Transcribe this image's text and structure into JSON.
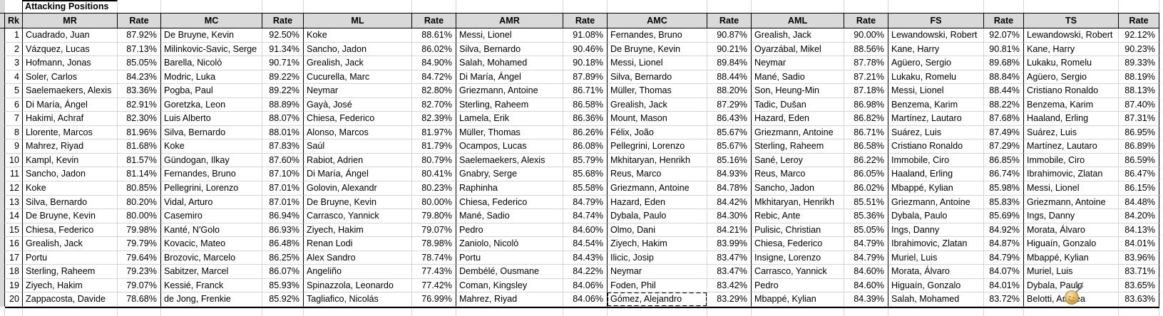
{
  "title": "Attacking Positions",
  "rank_header": "Rk",
  "rate_header": "Rate",
  "ranks": [
    1,
    2,
    3,
    4,
    5,
    6,
    7,
    8,
    9,
    10,
    11,
    12,
    13,
    14,
    15,
    16,
    17,
    18,
    19,
    20
  ],
  "groups": [
    {
      "position": "MR",
      "players": [
        {
          "name": "Cuadrado, Juan",
          "rate": "87.92%"
        },
        {
          "name": "Vázquez, Lucas",
          "rate": "87.13%"
        },
        {
          "name": "Hofmann, Jonas",
          "rate": "85.05%"
        },
        {
          "name": "Soler, Carlos",
          "rate": "84.23%"
        },
        {
          "name": "Saelemaekers, Alexis",
          "rate": "83.36%"
        },
        {
          "name": "Di María, Ángel",
          "rate": "82.91%"
        },
        {
          "name": "Hakimi, Achraf",
          "rate": "82.30%"
        },
        {
          "name": "Llorente, Marcos",
          "rate": "81.96%"
        },
        {
          "name": "Mahrez, Riyad",
          "rate": "81.68%"
        },
        {
          "name": "Kampl, Kevin",
          "rate": "81.57%"
        },
        {
          "name": "Sancho, Jadon",
          "rate": "81.14%"
        },
        {
          "name": "Koke",
          "rate": "80.85%"
        },
        {
          "name": "Silva, Bernardo",
          "rate": "80.20%"
        },
        {
          "name": "De Bruyne, Kevin",
          "rate": "80.00%"
        },
        {
          "name": "Chiesa, Federico",
          "rate": "79.98%"
        },
        {
          "name": "Grealish, Jack",
          "rate": "79.79%"
        },
        {
          "name": "Portu",
          "rate": "79.64%"
        },
        {
          "name": "Sterling, Raheem",
          "rate": "79.23%"
        },
        {
          "name": "Ziyech, Hakim",
          "rate": "79.07%"
        },
        {
          "name": "Zappacosta, Davide",
          "rate": "78.68%"
        }
      ]
    },
    {
      "position": "MC",
      "players": [
        {
          "name": "De Bruyne, Kevin",
          "rate": "92.50%"
        },
        {
          "name": "Milinkovic-Savic, Serge",
          "rate": "91.34%"
        },
        {
          "name": "Barella, Nicolò",
          "rate": "90.71%"
        },
        {
          "name": "Modric, Luka",
          "rate": "89.22%"
        },
        {
          "name": "Pogba, Paul",
          "rate": "89.22%"
        },
        {
          "name": "Goretzka, Leon",
          "rate": "88.89%"
        },
        {
          "name": "Luis Alberto",
          "rate": "88.07%"
        },
        {
          "name": "Silva, Bernardo",
          "rate": "88.01%"
        },
        {
          "name": "Koke",
          "rate": "87.83%"
        },
        {
          "name": "Gündogan, Ilkay",
          "rate": "87.60%"
        },
        {
          "name": "Fernandes, Bruno",
          "rate": "87.10%"
        },
        {
          "name": "Pellegrini, Lorenzo",
          "rate": "87.01%"
        },
        {
          "name": "Vidal, Arturo",
          "rate": "87.01%"
        },
        {
          "name": "Casemiro",
          "rate": "86.94%"
        },
        {
          "name": "Kanté, N'Golo",
          "rate": "86.93%"
        },
        {
          "name": "Kovacic, Mateo",
          "rate": "86.48%"
        },
        {
          "name": "Brozovic, Marcelo",
          "rate": "86.25%"
        },
        {
          "name": "Sabitzer, Marcel",
          "rate": "86.07%"
        },
        {
          "name": "Kessié, Franck",
          "rate": "85.93%"
        },
        {
          "name": "de Jong, Frenkie",
          "rate": "85.92%"
        }
      ]
    },
    {
      "position": "ML",
      "players": [
        {
          "name": "Koke",
          "rate": "88.61%"
        },
        {
          "name": "Sancho, Jadon",
          "rate": "86.02%"
        },
        {
          "name": "Grealish, Jack",
          "rate": "84.90%"
        },
        {
          "name": "Cucurella, Marc",
          "rate": "84.72%"
        },
        {
          "name": "Neymar",
          "rate": "82.80%"
        },
        {
          "name": "Gayà, José",
          "rate": "82.70%"
        },
        {
          "name": "Chiesa, Federico",
          "rate": "82.39%"
        },
        {
          "name": "Alonso, Marcos",
          "rate": "81.97%"
        },
        {
          "name": "Saúl",
          "rate": "81.79%"
        },
        {
          "name": "Rabiot, Adrien",
          "rate": "80.79%"
        },
        {
          "name": "Di María, Ángel",
          "rate": "80.41%"
        },
        {
          "name": "Golovin, Alexandr",
          "rate": "80.23%"
        },
        {
          "name": "De Bruyne, Kevin",
          "rate": "80.00%"
        },
        {
          "name": "Carrasco, Yannick",
          "rate": "79.80%"
        },
        {
          "name": "Ziyech, Hakim",
          "rate": "79.07%"
        },
        {
          "name": "Renan Lodi",
          "rate": "78.98%"
        },
        {
          "name": "Alex Sandro",
          "rate": "78.74%"
        },
        {
          "name": "Angeliño",
          "rate": "77.43%"
        },
        {
          "name": "Spinazzola, Leonardo",
          "rate": "77.42%"
        },
        {
          "name": "Tagliafico, Nicolás",
          "rate": "76.99%"
        }
      ]
    },
    {
      "position": "AMR",
      "players": [
        {
          "name": "Messi, Lionel",
          "rate": "91.08%"
        },
        {
          "name": "Silva, Bernardo",
          "rate": "90.46%"
        },
        {
          "name": "Salah, Mohamed",
          "rate": "90.18%"
        },
        {
          "name": "Di María, Ángel",
          "rate": "87.89%"
        },
        {
          "name": "Griezmann, Antoine",
          "rate": "86.71%"
        },
        {
          "name": "Sterling, Raheem",
          "rate": "86.58%"
        },
        {
          "name": "Lamela, Erik",
          "rate": "86.36%"
        },
        {
          "name": "Müller, Thomas",
          "rate": "86.26%"
        },
        {
          "name": "Ocampos, Lucas",
          "rate": "86.08%"
        },
        {
          "name": "Saelemaekers, Alexis",
          "rate": "85.79%"
        },
        {
          "name": "Gnabry, Serge",
          "rate": "85.68%"
        },
        {
          "name": "Raphinha",
          "rate": "85.58%"
        },
        {
          "name": "Chiesa, Federico",
          "rate": "84.79%"
        },
        {
          "name": "Mané, Sadio",
          "rate": "84.74%"
        },
        {
          "name": "Pedro",
          "rate": "84.60%"
        },
        {
          "name": "Zaniolo, Nicolò",
          "rate": "84.54%"
        },
        {
          "name": "Portu",
          "rate": "84.43%"
        },
        {
          "name": "Dembélé, Ousmane",
          "rate": "84.22%"
        },
        {
          "name": "Coman, Kingsley",
          "rate": "84.06%"
        },
        {
          "name": "Mahrez, Riyad",
          "rate": "84.06%"
        }
      ]
    },
    {
      "position": "AMC",
      "players": [
        {
          "name": "Fernandes, Bruno",
          "rate": "90.87%"
        },
        {
          "name": "De Bruyne, Kevin",
          "rate": "90.21%"
        },
        {
          "name": "Messi, Lionel",
          "rate": "89.84%"
        },
        {
          "name": "Silva, Bernardo",
          "rate": "88.44%"
        },
        {
          "name": "Müller, Thomas",
          "rate": "88.20%"
        },
        {
          "name": "Grealish, Jack",
          "rate": "87.29%"
        },
        {
          "name": "Mount, Mason",
          "rate": "86.43%"
        },
        {
          "name": "Félix, João",
          "rate": "85.67%"
        },
        {
          "name": "Pellegrini, Lorenzo",
          "rate": "85.67%"
        },
        {
          "name": "Mkhitaryan, Henrikh",
          "rate": "85.16%"
        },
        {
          "name": "Reus, Marco",
          "rate": "84.93%"
        },
        {
          "name": "Griezmann, Antoine",
          "rate": "84.78%"
        },
        {
          "name": "Hazard, Eden",
          "rate": "84.42%"
        },
        {
          "name": "Dybala, Paulo",
          "rate": "84.30%"
        },
        {
          "name": "Olmo, Dani",
          "rate": "84.21%"
        },
        {
          "name": "Ziyech, Hakim",
          "rate": "83.99%"
        },
        {
          "name": "Ilicic, Josip",
          "rate": "83.47%"
        },
        {
          "name": "Neymar",
          "rate": "83.47%"
        },
        {
          "name": "Foden, Phil",
          "rate": "83.42%"
        },
        {
          "name": "Gómez, Alejandro",
          "rate": "83.29%"
        }
      ]
    },
    {
      "position": "AML",
      "players": [
        {
          "name": "Grealish, Jack",
          "rate": "90.00%"
        },
        {
          "name": "Oyarzábal, Mikel",
          "rate": "88.56%"
        },
        {
          "name": "Neymar",
          "rate": "87.78%"
        },
        {
          "name": "Mané, Sadio",
          "rate": "87.21%"
        },
        {
          "name": "Son, Heung-Min",
          "rate": "87.18%"
        },
        {
          "name": "Tadic, Dušan",
          "rate": "86.98%"
        },
        {
          "name": "Hazard, Eden",
          "rate": "86.82%"
        },
        {
          "name": "Griezmann, Antoine",
          "rate": "86.71%"
        },
        {
          "name": "Sterling, Raheem",
          "rate": "86.58%"
        },
        {
          "name": "Sané, Leroy",
          "rate": "86.22%"
        },
        {
          "name": "Reus, Marco",
          "rate": "86.05%"
        },
        {
          "name": "Sancho, Jadon",
          "rate": "86.02%"
        },
        {
          "name": "Mkhitaryan, Henrikh",
          "rate": "85.51%"
        },
        {
          "name": "Rebic, Ante",
          "rate": "85.36%"
        },
        {
          "name": "Pulisic, Christian",
          "rate": "85.05%"
        },
        {
          "name": "Chiesa, Federico",
          "rate": "84.79%"
        },
        {
          "name": "Insigne, Lorenzo",
          "rate": "84.79%"
        },
        {
          "name": "Carrasco, Yannick",
          "rate": "84.60%"
        },
        {
          "name": "Pedro",
          "rate": "84.60%"
        },
        {
          "name": "Mbappé, Kylian",
          "rate": "84.39%"
        }
      ]
    },
    {
      "position": "FS",
      "players": [
        {
          "name": "Lewandowski, Robert",
          "rate": "92.07%"
        },
        {
          "name": "Kane, Harry",
          "rate": "90.81%"
        },
        {
          "name": "Agüero, Sergio",
          "rate": "89.68%"
        },
        {
          "name": "Lukaku, Romelu",
          "rate": "88.84%"
        },
        {
          "name": "Messi, Lionel",
          "rate": "88.44%"
        },
        {
          "name": "Benzema, Karim",
          "rate": "88.22%"
        },
        {
          "name": "Martínez, Lautaro",
          "rate": "87.68%"
        },
        {
          "name": "Suárez, Luis",
          "rate": "87.49%"
        },
        {
          "name": "Cristiano Ronaldo",
          "rate": "87.29%"
        },
        {
          "name": "Immobile, Ciro",
          "rate": "86.85%"
        },
        {
          "name": "Haaland, Erling",
          "rate": "86.74%"
        },
        {
          "name": "Mbappé, Kylian",
          "rate": "85.98%"
        },
        {
          "name": "Griezmann, Antoine",
          "rate": "85.83%"
        },
        {
          "name": "Dybala, Paulo",
          "rate": "85.69%"
        },
        {
          "name": "Ings, Danny",
          "rate": "84.92%"
        },
        {
          "name": "Ibrahimovic, Zlatan",
          "rate": "84.87%"
        },
        {
          "name": "Muriel, Luis",
          "rate": "84.79%"
        },
        {
          "name": "Morata, Álvaro",
          "rate": "84.07%"
        },
        {
          "name": "Higuaín, Gonzalo",
          "rate": "84.01%"
        },
        {
          "name": "Salah, Mohamed",
          "rate": "83.72%"
        }
      ]
    },
    {
      "position": "TS",
      "players": [
        {
          "name": "Lewandowski, Robert",
          "rate": "92.12%"
        },
        {
          "name": "Kane, Harry",
          "rate": "90.23%"
        },
        {
          "name": "Lukaku, Romelu",
          "rate": "89.33%"
        },
        {
          "name": "Agüero, Sergio",
          "rate": "88.19%"
        },
        {
          "name": "Cristiano Ronaldo",
          "rate": "88.13%"
        },
        {
          "name": "Benzema, Karim",
          "rate": "87.40%"
        },
        {
          "name": "Haaland, Erling",
          "rate": "87.31%"
        },
        {
          "name": "Suárez, Luis",
          "rate": "86.95%"
        },
        {
          "name": "Martínez, Lautaro",
          "rate": "86.89%"
        },
        {
          "name": "Immobile, Ciro",
          "rate": "86.59%"
        },
        {
          "name": "Ibrahimovic, Zlatan",
          "rate": "86.47%"
        },
        {
          "name": "Messi, Lionel",
          "rate": "86.15%"
        },
        {
          "name": "Griezmann, Antoine",
          "rate": "84.48%"
        },
        {
          "name": "Ings, Danny",
          "rate": "84.20%"
        },
        {
          "name": "Morata, Álvaro",
          "rate": "84.13%"
        },
        {
          "name": "Higuaín, Gonzalo",
          "rate": "84.01%"
        },
        {
          "name": "Mbappé, Kylian",
          "rate": "83.96%"
        },
        {
          "name": "Muriel, Luis",
          "rate": "83.71%"
        },
        {
          "name": "Dybala, Paulo",
          "rate": "83.65%"
        },
        {
          "name": "Belotti, Andrea",
          "rate": "83.63%"
        }
      ]
    }
  ],
  "annotations": {
    "copied_cell": {
      "group": "AMC",
      "rank": 20,
      "name": "Gómez, Alejandro"
    },
    "cursor": "gold-ball-cursor"
  },
  "colors": {
    "header_bg": "#d9d9d9",
    "grid_line": "#d5d5d5",
    "table_border": "#000000",
    "cursor_gold": "#e6bd6a"
  }
}
